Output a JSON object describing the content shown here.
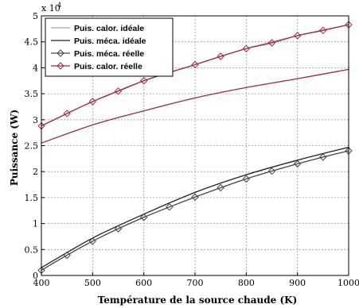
{
  "chart_data": {
    "type": "line",
    "title": "",
    "xlabel": "Température de la source chaude (K)",
    "ylabel": "Puissance (W)",
    "xlim": [
      400,
      1000
    ],
    "ylim": [
      0,
      5
    ],
    "y_multiplier_label": "x 10",
    "y_multiplier_exponent": "4",
    "x_ticks": [
      "400",
      "500",
      "600",
      "700",
      "800",
      "900",
      "1000"
    ],
    "y_ticks": [
      "0",
      "0.5",
      "1",
      "1.5",
      "2",
      "2.5",
      "3",
      "3.5",
      "4",
      "4.5",
      "5"
    ],
    "grid": true,
    "legend_position": "top-left",
    "series": [
      {
        "name": "Puis. calor. idéale",
        "color": "#b5a6a6",
        "marker": "none",
        "x": [
          400,
          500,
          600,
          700,
          800,
          900,
          1000
        ],
        "y": [
          2.88,
          3.35,
          3.75,
          4.06,
          4.37,
          4.62,
          4.83
        ]
      },
      {
        "name": "Puis. méca. idéale",
        "color": "#222222",
        "marker": "none",
        "x": [
          400,
          500,
          600,
          700,
          800,
          900,
          1000
        ],
        "y": [
          0.15,
          0.72,
          1.18,
          1.6,
          1.94,
          2.22,
          2.47
        ]
      },
      {
        "name": "Puis. méca. réelle",
        "color": "#444444",
        "marker": "diamond",
        "x": [
          400,
          450,
          500,
          550,
          600,
          650,
          700,
          750,
          800,
          850,
          900,
          950,
          1000
        ],
        "y": [
          0.1,
          0.39,
          0.66,
          0.9,
          1.12,
          1.32,
          1.51,
          1.69,
          1.86,
          2.01,
          2.15,
          2.28,
          2.4
        ]
      },
      {
        "name": "Puis. calor. réelle",
        "color": "#a0283c",
        "marker": "diamond",
        "x": [
          400,
          450,
          500,
          550,
          600,
          650,
          700,
          750,
          800,
          850,
          900,
          950,
          1000
        ],
        "y": [
          2.88,
          3.12,
          3.35,
          3.55,
          3.75,
          3.91,
          4.06,
          4.22,
          4.37,
          4.48,
          4.62,
          4.72,
          4.83
        ]
      }
    ],
    "unlabeled_series": [
      {
        "color": "#a0283c",
        "marker": "none",
        "x": [
          400,
          500,
          600,
          700,
          800,
          900,
          1000
        ],
        "y": [
          2.55,
          2.9,
          3.17,
          3.42,
          3.62,
          3.79,
          3.97
        ]
      }
    ]
  }
}
